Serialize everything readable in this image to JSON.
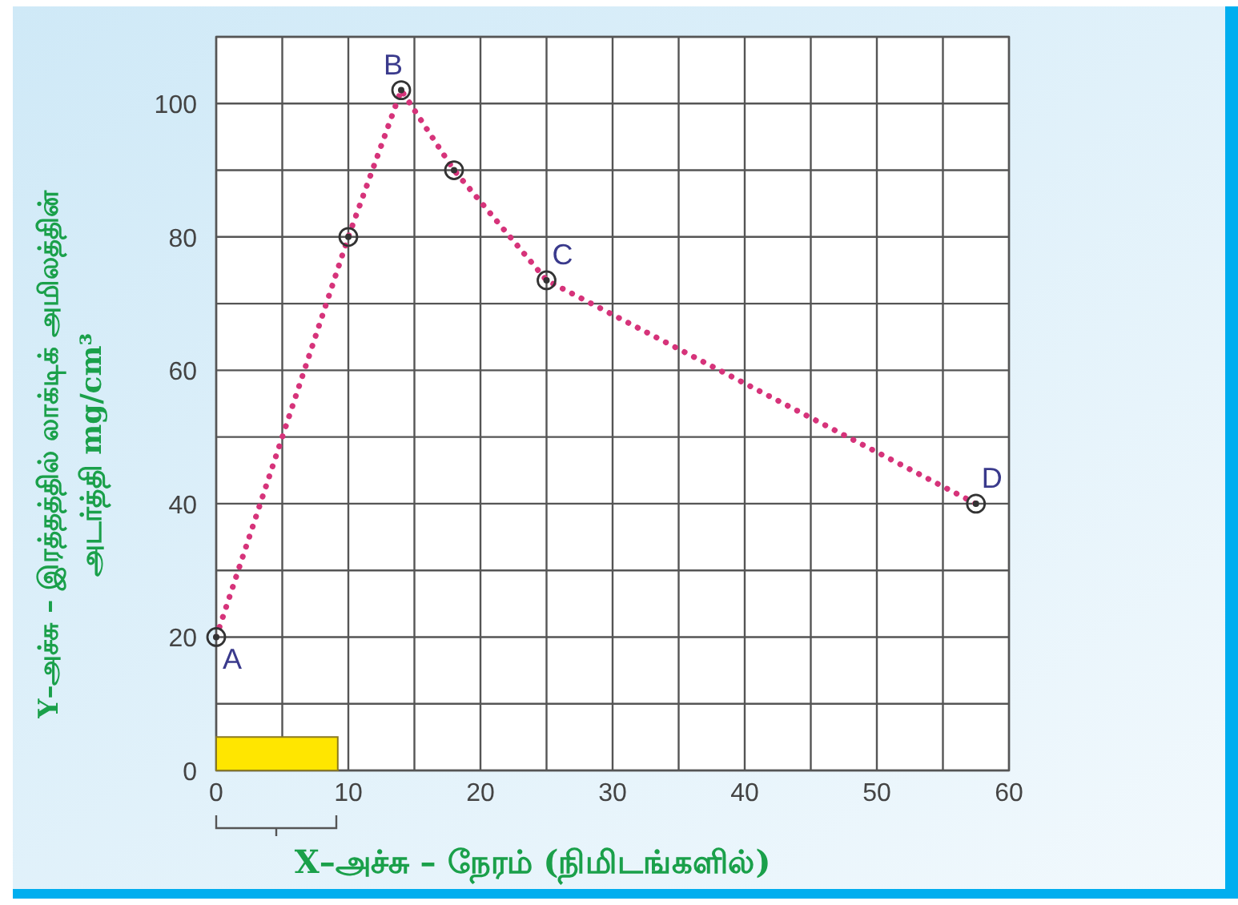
{
  "chart_data": {
    "type": "line",
    "xlabel": "X–அச்சு – நேரம் (நிமிடங்களில்)",
    "ylabel": "Y–அச்சு – இரத்தத்தில் லாக்டிக் அமிலத்தின்\nஅடர்த்தி mg/cm³",
    "x": [
      0,
      10,
      14,
      18,
      25,
      57.5
    ],
    "series": [
      {
        "type": "area",
        "color": "#ffe600",
        "x": [
          0,
          9.2
        ],
        "values": [
          5,
          5
        ]
      },
      {
        "color": "#d6337a",
        "marker": "circle",
        "values": [
          20,
          80,
          102,
          90,
          73.5,
          40
        ]
      }
    ],
    "xlim": [
      0,
      60
    ],
    "ylim": [
      0,
      110
    ],
    "xticks": [
      0,
      {
        "value": 5,
        "label": null
      },
      10,
      {
        "value": 15,
        "label": null
      },
      20,
      {
        "value": 25,
        "label": null
      },
      30,
      {
        "value": 35,
        "label": null
      },
      40,
      {
        "value": 45,
        "label": null
      },
      50,
      {
        "value": 55,
        "label": null
      },
      60
    ],
    "yticks": [
      0,
      {
        "value": 10,
        "label": null
      },
      20,
      {
        "value": 30,
        "label": null
      },
      40,
      {
        "value": 50,
        "label": null
      },
      60,
      {
        "value": 70,
        "label": null
      },
      80,
      {
        "value": 90,
        "label": null
      },
      100,
      {
        "value": 110,
        "label": null
      }
    ],
    "grid": true,
    "line_style": "dotted",
    "annotations": [
      {
        "text": "A",
        "x": 0,
        "y": 20
      },
      {
        "text": "B",
        "x": 14,
        "y": 102
      },
      {
        "text": "C",
        "x": 25,
        "y": 73.5
      },
      {
        "text": "D",
        "x": 57.5,
        "y": 40
      }
    ]
  }
}
